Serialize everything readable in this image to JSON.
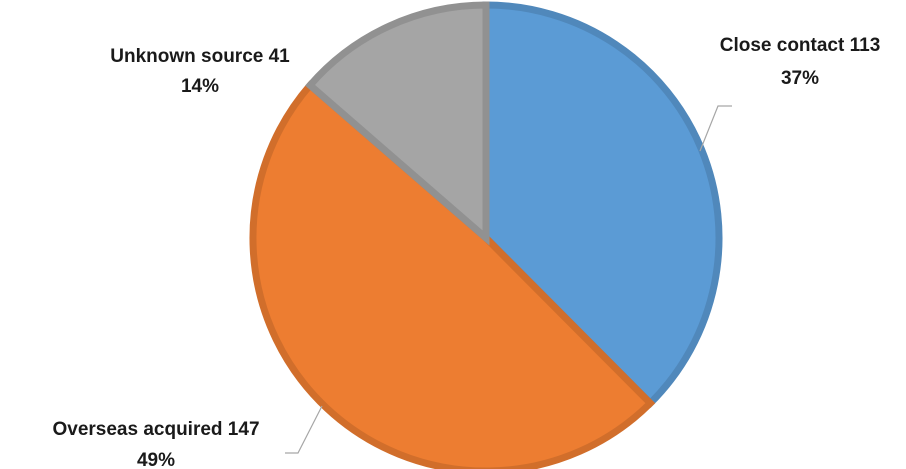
{
  "chart_data": {
    "type": "pie",
    "title": "",
    "slices": [
      {
        "label": "Close contact",
        "value": 113,
        "percent_label": "37%",
        "color": "#5B9BD5"
      },
      {
        "label": "Overseas acquired",
        "value": 147,
        "percent_label": "49%",
        "color": "#ED7D31"
      },
      {
        "label": "Unknown source",
        "value": 41,
        "percent_label": "14%",
        "color": "#A5A5A5"
      }
    ],
    "start_angle_deg": 0,
    "direction": "clockwise",
    "legend": "none"
  }
}
